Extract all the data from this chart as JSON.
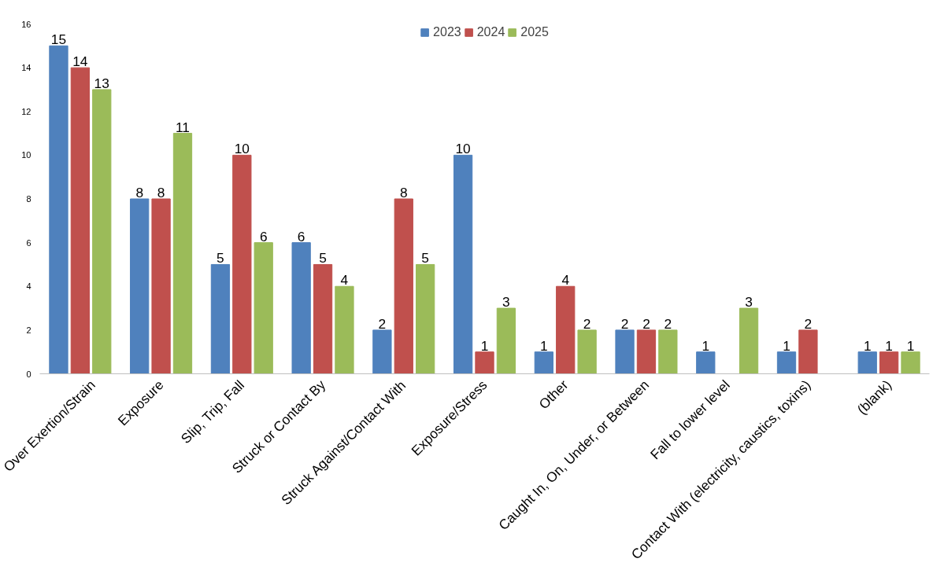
{
  "chart_data": {
    "type": "bar",
    "categories": [
      "Over Exertion/Strain",
      "Exposure",
      "Slip, Trip, Fall",
      "Struck or Contact By",
      "Struck Against/Contact With",
      "Exposure/Stress",
      "Other",
      "Caught In, On, Under, or Between",
      "Fall to lower level",
      "Contact With (electricity, caustics, toxins)",
      "(blank)"
    ],
    "series": [
      {
        "name": "2023",
        "color": "#4f81bd",
        "values": [
          15,
          8,
          5,
          6,
          2,
          10,
          1,
          2,
          1,
          1,
          1
        ]
      },
      {
        "name": "2024",
        "color": "#c0504d",
        "values": [
          14,
          8,
          10,
          5,
          8,
          1,
          4,
          2,
          null,
          2,
          1
        ]
      },
      {
        "name": "2025",
        "color": "#9bbb59",
        "values": [
          13,
          11,
          6,
          4,
          5,
          3,
          2,
          2,
          3,
          null,
          1
        ]
      }
    ],
    "ylim": [
      0,
      16
    ],
    "yticks": [
      0,
      2,
      4,
      6,
      8,
      10,
      12,
      14,
      16
    ],
    "grid": false,
    "legend": "top",
    "data_labels": true
  }
}
